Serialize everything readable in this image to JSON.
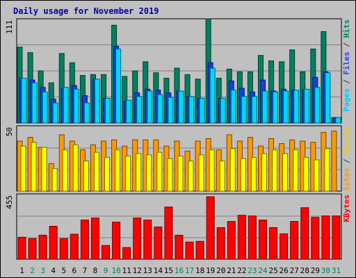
{
  "chart_data": {
    "type": "bar",
    "title": "Daily usage for November 2019",
    "categories": [
      "1",
      "2",
      "3",
      "4",
      "5",
      "6",
      "7",
      "8",
      "9",
      "10",
      "11",
      "12",
      "13",
      "14",
      "15",
      "16",
      "17",
      "18",
      "19",
      "20",
      "21",
      "22",
      "23",
      "24",
      "25",
      "26",
      "27",
      "28",
      "29",
      "30",
      "31"
    ],
    "weekend_days": [
      "2",
      "3",
      "9",
      "10",
      "16",
      "17",
      "23",
      "24",
      "30",
      "31"
    ],
    "panels": [
      {
        "name": "requests",
        "ymax": 111,
        "ymax_label": "111",
        "right_labels": [
          {
            "text": "Pages",
            "color": "#00c8ff"
          },
          {
            "text": " / ",
            "color": "#404040"
          },
          {
            "text": "Files",
            "color": "#2040ff"
          },
          {
            "text": " / ",
            "color": "#404040"
          },
          {
            "text": "Hits",
            "color": "#00806a"
          }
        ],
        "series": [
          {
            "name": "Hits",
            "color": "#008060",
            "values": [
              83,
              77,
              57,
              44,
              76,
              66,
              52,
              53,
              53,
              107,
              51,
              57,
              67,
              55,
              49,
              60,
              53,
              48,
              114,
              49,
              59,
              56,
              56,
              74,
              68,
              67,
              80,
              56,
              81,
              100,
              6
            ]
          },
          {
            "name": "Files",
            "color": "#1040e0",
            "values": [
              49,
              47,
              39,
              26,
              38,
              41,
              30,
              48,
              27,
              84,
              24,
              33,
              37,
              36,
              33,
              35,
              29,
              27,
              66,
              27,
              46,
              38,
              34,
              47,
              35,
              37,
              36,
              36,
              50,
              56,
              6
            ]
          },
          {
            "name": "Pages",
            "color": "#00d8ff",
            "values": [
              49,
              44,
              34,
              22,
              39,
              37,
              22,
              48,
              27,
              81,
              25,
              29,
              35,
              31,
              28,
              35,
              29,
              27,
              60,
              27,
              36,
              29,
              29,
              35,
              34,
              35,
              36,
              37,
              39,
              55,
              6
            ]
          }
        ]
      },
      {
        "name": "visits",
        "ymax": 50,
        "ymax_label": "50",
        "right_labels": [
          {
            "text": "Sites",
            "color": "#ff9900"
          },
          {
            "text": " / ",
            "color": "#404040"
          },
          {
            "text": "Visits",
            "color": "#e8d000"
          }
        ],
        "series": [
          {
            "name": "Visits",
            "color": "#ff9900",
            "values": [
              40,
              43,
              35,
              22,
              45,
              40,
              33,
              37,
              40,
              41,
              36,
              41,
              41,
              41,
              36,
              40,
              32,
              40,
              42,
              33,
              45,
              40,
              43,
              36,
              42,
              38,
              41,
              40,
              39,
              47,
              48
            ]
          },
          {
            "name": "Sites",
            "color": "#ffff00",
            "values": [
              36,
              39,
              35,
              18,
              33,
              37,
              24,
              31,
              27,
              33,
              28,
              30,
              29,
              31,
              26,
              28,
              24,
              29,
              33,
              24,
              34,
              26,
              27,
              30,
              33,
              30,
              33,
              27,
              25,
              34,
              0
            ]
          }
        ]
      },
      {
        "name": "kbytes",
        "ymax": 455,
        "ymax_label": "455",
        "right_labels": [
          {
            "text": "KBytes",
            "color": "#ff0000"
          }
        ],
        "series": [
          {
            "name": "KBytes",
            "color": "#ff0000",
            "values": [
              160,
              150,
              175,
              240,
              150,
              182,
              285,
              300,
              100,
              270,
              85,
              300,
              285,
              235,
              380,
              175,
              125,
              130,
              455,
              230,
              275,
              320,
              315,
              285,
              230,
              185,
              275,
              375,
              305,
              315,
              315
            ]
          }
        ]
      }
    ]
  }
}
